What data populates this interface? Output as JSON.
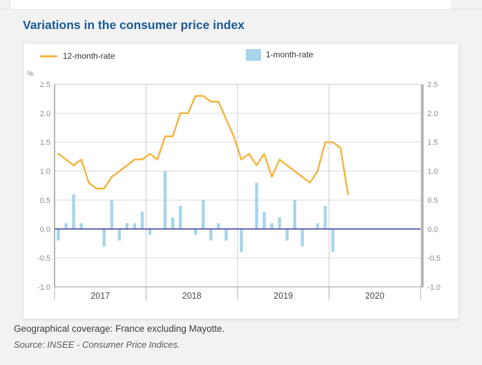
{
  "page": {
    "title": "Variations in the consumer price index",
    "footer": {
      "coverage": "Geographical coverage: France excluding Mayotte.",
      "source": "Source: INSEE - Consumer Price Indices."
    }
  },
  "legend": {
    "line_label": "12-month-rate",
    "bar_label": "1-month-rate"
  },
  "unit_label": "%",
  "colors": {
    "title": "#1a5a96",
    "line": "#f5b43e",
    "bar": "#a7d5ec",
    "zero_line": "#5b62aa",
    "grid": "#d9d9d9",
    "year_grid": "#cccccc",
    "axis": "#9b9b9b",
    "scrollbar": "#b3b3b3",
    "tick": "#b0b0b0",
    "tick_label": "#898989",
    "year_label": "#4a4a4a"
  },
  "chart_data": {
    "type": "line+bar",
    "title": "Variations in the consumer price index",
    "unit": "%",
    "start_month": "2017-01",
    "end_month": "2020-03",
    "months_span": 48,
    "year_labels": [
      "2017",
      "2018",
      "2019",
      "2020"
    ],
    "yticks": [
      2.5,
      2.0,
      1.5,
      1.0,
      0.5,
      0.0,
      -0.5,
      -1.0
    ],
    "ylim": [
      -1.0,
      2.5
    ],
    "grid": true,
    "legend_position": "top",
    "series": [
      {
        "name": "12-month-rate",
        "type": "line",
        "values": [
          1.3,
          1.2,
          1.1,
          1.2,
          0.8,
          0.7,
          0.7,
          0.9,
          1.0,
          1.1,
          1.2,
          1.2,
          1.3,
          1.2,
          1.6,
          1.6,
          2.0,
          2.0,
          2.3,
          2.3,
          2.2,
          2.2,
          1.9,
          1.6,
          1.2,
          1.3,
          1.1,
          1.3,
          0.9,
          1.2,
          1.1,
          1.0,
          0.9,
          0.8,
          1.0,
          1.5,
          1.5,
          1.4,
          0.6
        ]
      },
      {
        "name": "1-month-rate",
        "type": "bar",
        "values": [
          -0.2,
          0.1,
          0.6,
          0.1,
          0.0,
          0.0,
          -0.3,
          0.5,
          -0.2,
          0.1,
          0.1,
          0.3,
          -0.1,
          0.0,
          1.0,
          0.2,
          0.4,
          0.0,
          -0.1,
          0.5,
          -0.2,
          0.1,
          -0.2,
          0.0,
          -0.4,
          0.0,
          0.8,
          0.3,
          0.1,
          0.2,
          -0.2,
          0.5,
          -0.3,
          0.0,
          0.1,
          0.4,
          -0.4,
          0.0,
          0.0
        ]
      }
    ]
  }
}
